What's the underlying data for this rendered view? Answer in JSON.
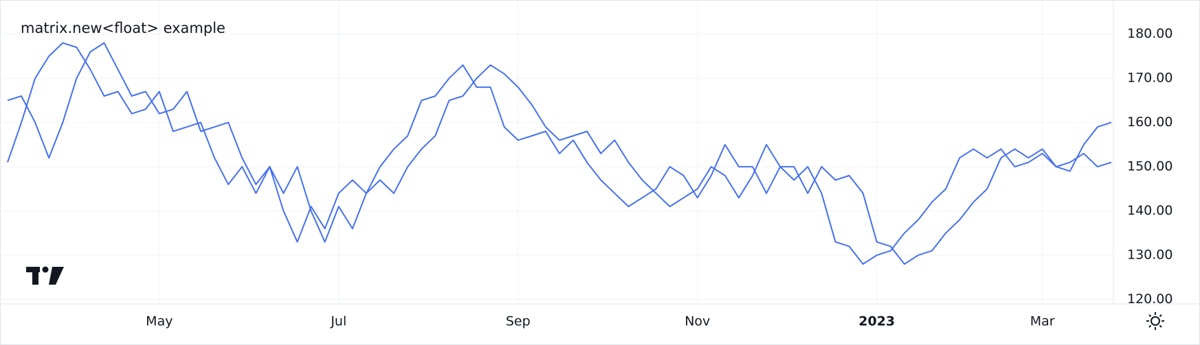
{
  "chart_data": {
    "type": "line",
    "title": "matrix.new<float> example",
    "categories": [
      null,
      null,
      null,
      null,
      null,
      null,
      null,
      null,
      null,
      null,
      null,
      "May",
      null,
      null,
      null,
      null,
      null,
      null,
      null,
      null,
      null,
      null,
      null,
      null,
      "Jul",
      null,
      null,
      null,
      null,
      null,
      null,
      null,
      null,
      null,
      null,
      null,
      null,
      "Sep",
      null,
      null,
      null,
      null,
      null,
      null,
      null,
      null,
      null,
      null,
      null,
      null,
      "Nov",
      null,
      null,
      null,
      null,
      null,
      null,
      null,
      null,
      null,
      null,
      null,
      null,
      "2023",
      null,
      null,
      null,
      null,
      null,
      null,
      null,
      null,
      null,
      null,
      null,
      "Mar",
      null,
      null,
      null,
      null,
      null
    ],
    "series": [
      {
        "color": "#4470ef",
        "values": [
          151,
          160,
          170,
          175,
          178,
          177,
          172,
          166,
          167,
          162,
          163,
          167,
          158,
          159,
          160,
          152,
          146,
          150,
          144,
          150,
          140,
          133,
          141,
          136,
          144,
          147,
          144,
          150,
          154,
          157,
          165,
          166,
          170,
          173,
          168,
          168,
          159,
          156,
          157,
          158,
          153,
          156,
          151,
          147,
          144,
          141,
          143,
          145,
          150,
          148,
          143,
          148,
          155,
          150,
          150,
          144,
          150,
          147,
          150,
          144,
          133,
          132,
          128,
          130,
          131,
          135,
          138,
          142,
          145,
          152,
          154,
          152,
          154,
          150,
          151,
          153,
          150,
          149,
          155,
          159,
          160
        ]
      },
      {
        "color": "#4470ef",
        "values": [
          165,
          166,
          160,
          152,
          160,
          170,
          176,
          178,
          172,
          166,
          167,
          162,
          163,
          167,
          158,
          159,
          160,
          152,
          146,
          150,
          144,
          150,
          140,
          133,
          141,
          136,
          144,
          147,
          144,
          150,
          154,
          157,
          165,
          166,
          170,
          173,
          171,
          168,
          164,
          159,
          156,
          157,
          158,
          153,
          156,
          151,
          147,
          144,
          141,
          143,
          145,
          150,
          148,
          143,
          148,
          155,
          150,
          150,
          144,
          150,
          147,
          148,
          144,
          133,
          132,
          128,
          130,
          131,
          135,
          138,
          142,
          145,
          152,
          154,
          152,
          154,
          150,
          151,
          153,
          150,
          151
        ]
      }
    ],
    "ylim": [
      119,
      186
    ],
    "yticks": [
      {
        "value": 120,
        "label": "120.00"
      },
      {
        "value": 130,
        "label": "130.00"
      },
      {
        "value": 140,
        "label": "140.00"
      },
      {
        "value": 150,
        "label": "150.00"
      },
      {
        "value": 160,
        "label": "160.00"
      },
      {
        "value": 170,
        "label": "170.00"
      },
      {
        "value": 180,
        "label": "180.00"
      }
    ],
    "grid": true
  }
}
